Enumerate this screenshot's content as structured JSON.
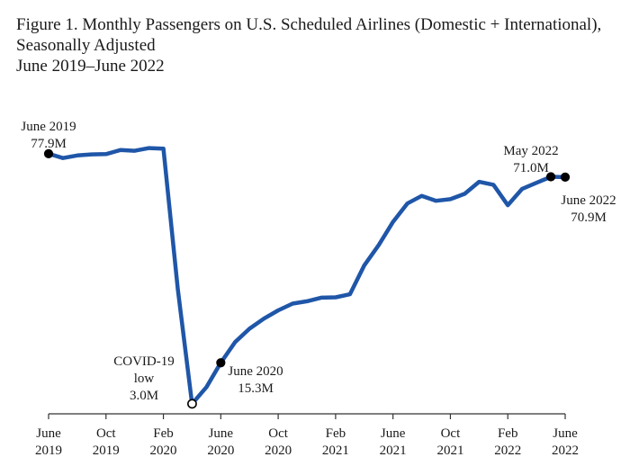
{
  "title_lines": [
    "Figure 1. Monthly Passengers on U.S. Scheduled Airlines (Domestic + International),",
    "Seasonally Adjusted",
    "June 2019–June 2022"
  ],
  "chart_data": {
    "type": "line",
    "title": "Figure 1. Monthly Passengers on U.S. Scheduled Airlines (Domestic + International), Seasonally Adjusted",
    "subtitle": "June 2019–June 2022",
    "xlabel": "",
    "ylabel": "",
    "grid": false,
    "legend": "none",
    "line_color": "#1f56a8",
    "ylim": [
      0,
      90
    ],
    "x_ticks": [
      {
        "i": 0,
        "line1": "June",
        "line2": "2019"
      },
      {
        "i": 4,
        "line1": "Oct",
        "line2": "2019"
      },
      {
        "i": 8,
        "line1": "Feb",
        "line2": "2020"
      },
      {
        "i": 12,
        "line1": "June",
        "line2": "2020"
      },
      {
        "i": 16,
        "line1": "Oct",
        "line2": "2020"
      },
      {
        "i": 20,
        "line1": "Feb",
        "line2": "2021"
      },
      {
        "i": 24,
        "line1": "June",
        "line2": "2021"
      },
      {
        "i": 28,
        "line1": "Oct",
        "line2": "2021"
      },
      {
        "i": 32,
        "line1": "Feb",
        "line2": "2022"
      },
      {
        "i": 36,
        "line1": "June",
        "line2": "2022"
      }
    ],
    "series": [
      {
        "x": [
          "2019-06",
          "2019-07",
          "2019-08",
          "2019-09",
          "2019-10",
          "2019-11",
          "2019-12",
          "2020-01",
          "2020-02",
          "2020-03",
          "2020-04",
          "2020-05",
          "2020-06",
          "2020-07",
          "2020-08",
          "2020-09",
          "2020-10",
          "2020-11",
          "2020-12",
          "2021-01",
          "2021-02",
          "2021-03",
          "2021-04",
          "2021-05",
          "2021-06",
          "2021-07",
          "2021-08",
          "2021-09",
          "2021-10",
          "2021-11",
          "2021-12",
          "2022-01",
          "2022-02",
          "2022-03",
          "2022-04",
          "2022-05",
          "2022-06"
        ],
        "values": [
          77.9,
          76.6,
          77.4,
          77.7,
          77.8,
          79.0,
          78.8,
          79.6,
          79.4,
          37.5,
          3.0,
          8.0,
          15.3,
          21.5,
          25.5,
          28.5,
          31.0,
          33.0,
          33.7,
          34.8,
          34.9,
          35.8,
          44.5,
          50.5,
          57.5,
          63.0,
          65.3,
          63.8,
          64.3,
          65.9,
          69.5,
          68.6,
          62.5,
          67.4,
          69.2,
          71.0,
          70.9
        ]
      }
    ],
    "annotations": [
      {
        "id": "start",
        "i": 0,
        "lines": [
          "June 2019",
          "77.9M"
        ],
        "marker": "filled"
      },
      {
        "id": "low",
        "i": 10,
        "lines": [
          "COVID-19",
          "low",
          "3.0M"
        ],
        "marker": "hollow"
      },
      {
        "id": "jun2020",
        "i": 12,
        "lines": [
          "June 2020",
          "15.3M"
        ],
        "marker": "filled"
      },
      {
        "id": "may2022",
        "i": 35,
        "lines": [
          "May 2022",
          "71.0M"
        ],
        "marker": "filled"
      },
      {
        "id": "jun2022",
        "i": 36,
        "lines": [
          "June 2022",
          "70.9M"
        ],
        "marker": "filled"
      }
    ]
  }
}
